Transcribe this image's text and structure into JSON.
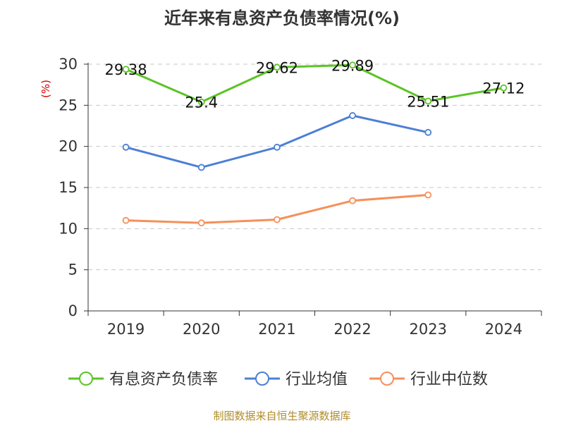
{
  "chart_data": {
    "type": "line",
    "title": "近年来有息资产负债率情况(%)",
    "ylabel": "(%)",
    "categories": [
      "2019",
      "2020",
      "2021",
      "2022",
      "2023",
      "2024"
    ],
    "ylim": [
      0,
      30
    ],
    "yticks": [
      0,
      5,
      10,
      15,
      20,
      25,
      30
    ],
    "grid": true,
    "legend_position": "bottom",
    "series": [
      {
        "name": "有息资产负债率",
        "color": "#5bc425",
        "values": [
          29.38,
          25.4,
          29.62,
          29.89,
          25.51,
          27.12
        ],
        "labels": [
          "29.38",
          "25.4",
          "29.62",
          "29.89",
          "25.51",
          "27.12"
        ]
      },
      {
        "name": "行业均值",
        "color": "#4c7fd6",
        "values": [
          19.9,
          17.45,
          19.9,
          23.75,
          21.7,
          null
        ]
      },
      {
        "name": "行业中位数",
        "color": "#f5905a",
        "values": [
          11.0,
          10.7,
          11.1,
          13.4,
          14.1,
          null
        ]
      }
    ],
    "source": "制图数据来自恒生聚源数据库"
  }
}
